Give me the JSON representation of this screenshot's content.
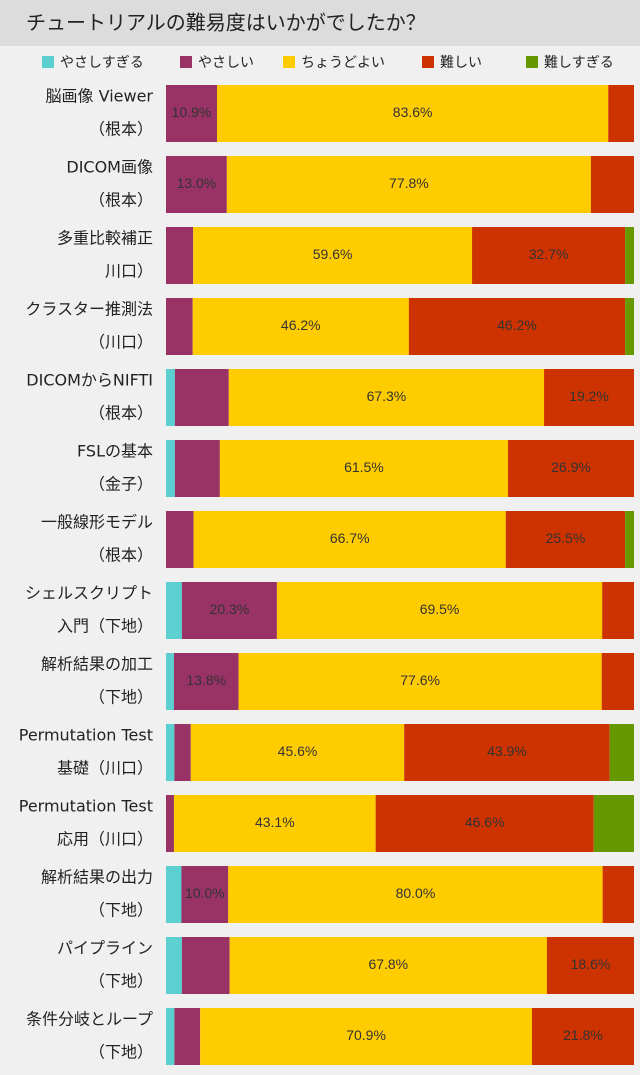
{
  "chart_data": {
    "type": "bar",
    "orientation": "horizontal",
    "stacked": true,
    "title": "チュートリアルの難易度はいかがでしたか？",
    "categories": [
      [
        "脳画像 Viewer",
        "（根本）"
      ],
      [
        "DICOM画像",
        "（根本）"
      ],
      [
        "多重比較補正",
        "川口）"
      ],
      [
        "クラスター推測法",
        "（川口）"
      ],
      [
        "DICOMからNIFTI",
        "（根本）"
      ],
      [
        "FSLの基本",
        "（金子）"
      ],
      [
        "一般線形モデル",
        "（根本）"
      ],
      [
        "シェルスクリプト",
        "入門（下地）"
      ],
      [
        "解析結果の加工",
        "（下地）"
      ],
      [
        "Permutation Test",
        "基礎（川口）"
      ],
      [
        "Permutation Test",
        "応用（川口）"
      ],
      [
        "解析結果の出力",
        "（下地）"
      ],
      [
        "パイプライン",
        "（下地）"
      ],
      [
        "条件分岐とループ",
        "（下地）"
      ]
    ],
    "series": [
      {
        "name": "やさしすぎる",
        "color": "#5ccfd0",
        "values": [
          0,
          0,
          0,
          0,
          1.9,
          1.9,
          0,
          3.4,
          1.7,
          1.8,
          0,
          3.3,
          3.4,
          1.8
        ],
        "value_labels": [
          null,
          null,
          null,
          null,
          null,
          null,
          null,
          null,
          null,
          null,
          null,
          null,
          null,
          null
        ]
      },
      {
        "name": "やさしい",
        "color": "#993366",
        "values": [
          10.9,
          13.0,
          5.8,
          5.7,
          11.5,
          9.6,
          5.9,
          20.3,
          13.8,
          3.5,
          1.7,
          10.0,
          10.2,
          5.5
        ],
        "value_labels": [
          "10.9%",
          "13.0%",
          null,
          null,
          null,
          null,
          null,
          "20.3%",
          "13.8%",
          null,
          null,
          "10.0%",
          null,
          null
        ]
      },
      {
        "name": "ちょうどよい",
        "color": "#ffcc00",
        "values": [
          83.6,
          77.8,
          59.6,
          46.2,
          67.3,
          61.5,
          66.7,
          69.5,
          77.6,
          45.6,
          43.1,
          80.0,
          67.8,
          70.9
        ],
        "value_labels": [
          "83.6%",
          "77.8%",
          "59.6%",
          "46.2%",
          "67.3%",
          "61.5%",
          "66.7%",
          "69.5%",
          "77.6%",
          "45.6%",
          "43.1%",
          "80.0%",
          "67.8%",
          "70.9%"
        ]
      },
      {
        "name": "難しい",
        "color": "#cc3300",
        "values": [
          5.5,
          9.2,
          32.7,
          46.2,
          19.2,
          26.9,
          25.5,
          6.8,
          6.9,
          43.9,
          46.6,
          6.7,
          18.6,
          21.8
        ],
        "value_labels": [
          null,
          null,
          "32.7%",
          "46.2%",
          "19.2%",
          "26.9%",
          "25.5%",
          null,
          null,
          "43.9%",
          "46.6%",
          null,
          "18.6%",
          "21.8%"
        ]
      },
      {
        "name": "難しすぎる",
        "color": "#669900",
        "values": [
          0,
          0,
          1.9,
          1.9,
          0,
          0,
          1.9,
          0,
          0,
          5.2,
          8.6,
          0,
          0,
          0
        ],
        "value_labels": [
          null,
          null,
          null,
          null,
          null,
          null,
          null,
          null,
          null,
          null,
          null,
          null,
          null,
          null
        ]
      }
    ]
  }
}
